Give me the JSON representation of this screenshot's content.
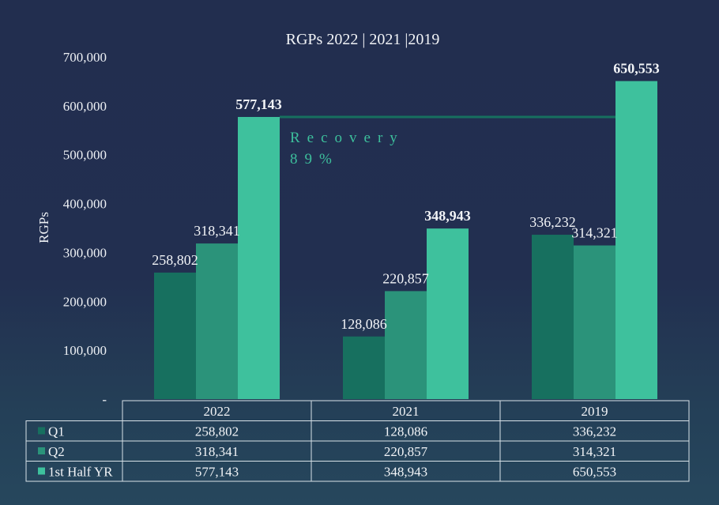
{
  "chart_data": {
    "type": "bar",
    "title": "RGPs 2022 | 2021 |2019",
    "xlabel": "",
    "ylabel": "RGPs",
    "ylim": [
      0,
      700000
    ],
    "yticks": [
      0,
      100000,
      200000,
      300000,
      400000,
      500000,
      600000,
      700000
    ],
    "ytick_labels": [
      "-",
      "100,000",
      "200,000",
      "300,000",
      "400,000",
      "500,000",
      "600,000",
      "700,000"
    ],
    "grid": false,
    "categories": [
      "2022",
      "2021",
      "2019"
    ],
    "series": [
      {
        "name": "Q1",
        "color": "#17705f",
        "values": [
          258802,
          128086,
          336232
        ],
        "labels": [
          "258,802",
          "128,086",
          "336,232"
        ],
        "bold_labels": false
      },
      {
        "name": "Q2",
        "color": "#2b937a",
        "values": [
          318341,
          220857,
          314321
        ],
        "labels": [
          "318,341",
          "220,857",
          "314,321"
        ],
        "bold_labels": false
      },
      {
        "name": "1st Half YR",
        "color": "#3ec19d",
        "values": [
          577143,
          348943,
          650553
        ],
        "labels": [
          "577,143",
          "348,943",
          "650,553"
        ],
        "bold_labels": true
      }
    ],
    "annotations": [
      {
        "type": "reference-line",
        "value": 577143,
        "from_category": "2022",
        "to_category": "2019",
        "color": "#17705f"
      },
      {
        "type": "text",
        "lines": [
          "Recovery",
          "89%"
        ],
        "color": "#3dbf9c"
      }
    ],
    "data_table": {
      "header": [
        "2022",
        "2021",
        "2019"
      ],
      "rows": [
        {
          "label": "Q1",
          "cells": [
            "258,802",
            "128,086",
            "336,232"
          ]
        },
        {
          "label": "Q2",
          "cells": [
            "318,341",
            "220,857",
            "314,321"
          ]
        },
        {
          "label": "1st Half YR",
          "cells": [
            "577,143",
            "348,943",
            "650,553"
          ]
        }
      ]
    },
    "legend": "in-table-left"
  }
}
